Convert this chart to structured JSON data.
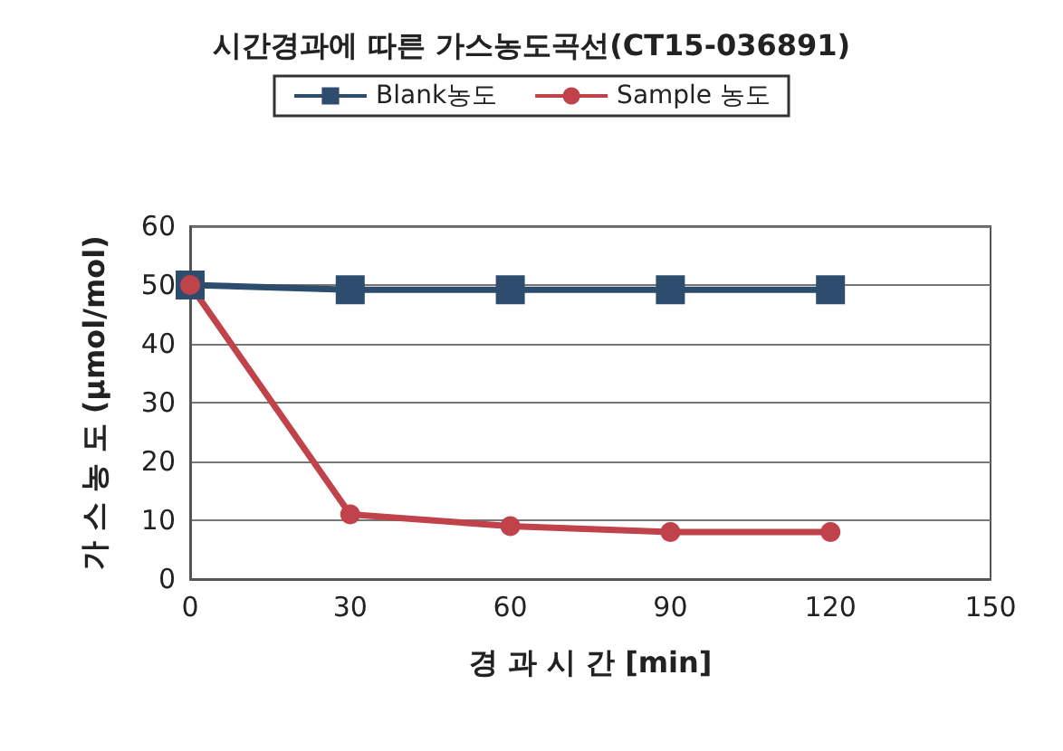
{
  "chart_data": {
    "type": "line",
    "title": "시간경과에 따른 가스농도곡선(CT15-036891)",
    "xlabel": "경 과 시 간 [min]",
    "ylabel": "가 스 농 도 (μmol/mol)",
    "x": [
      0,
      30,
      60,
      90,
      120
    ],
    "series": [
      {
        "name": "Blank농도",
        "color": "#2e4d6e",
        "marker": "square",
        "values": [
          50,
          49.2,
          49.2,
          49.2,
          49.2
        ]
      },
      {
        "name": "Sample 농도",
        "color": "#c0424a",
        "marker": "circle",
        "values": [
          50,
          11,
          9,
          8,
          8
        ]
      }
    ],
    "xlim": [
      0,
      150
    ],
    "xticks": [
      0,
      30,
      60,
      90,
      120,
      150
    ],
    "ylim": [
      0,
      60
    ],
    "yticks": [
      0,
      10,
      20,
      30,
      40,
      50,
      60
    ],
    "grid": "y",
    "legend": "top",
    "line_style": "solid"
  }
}
